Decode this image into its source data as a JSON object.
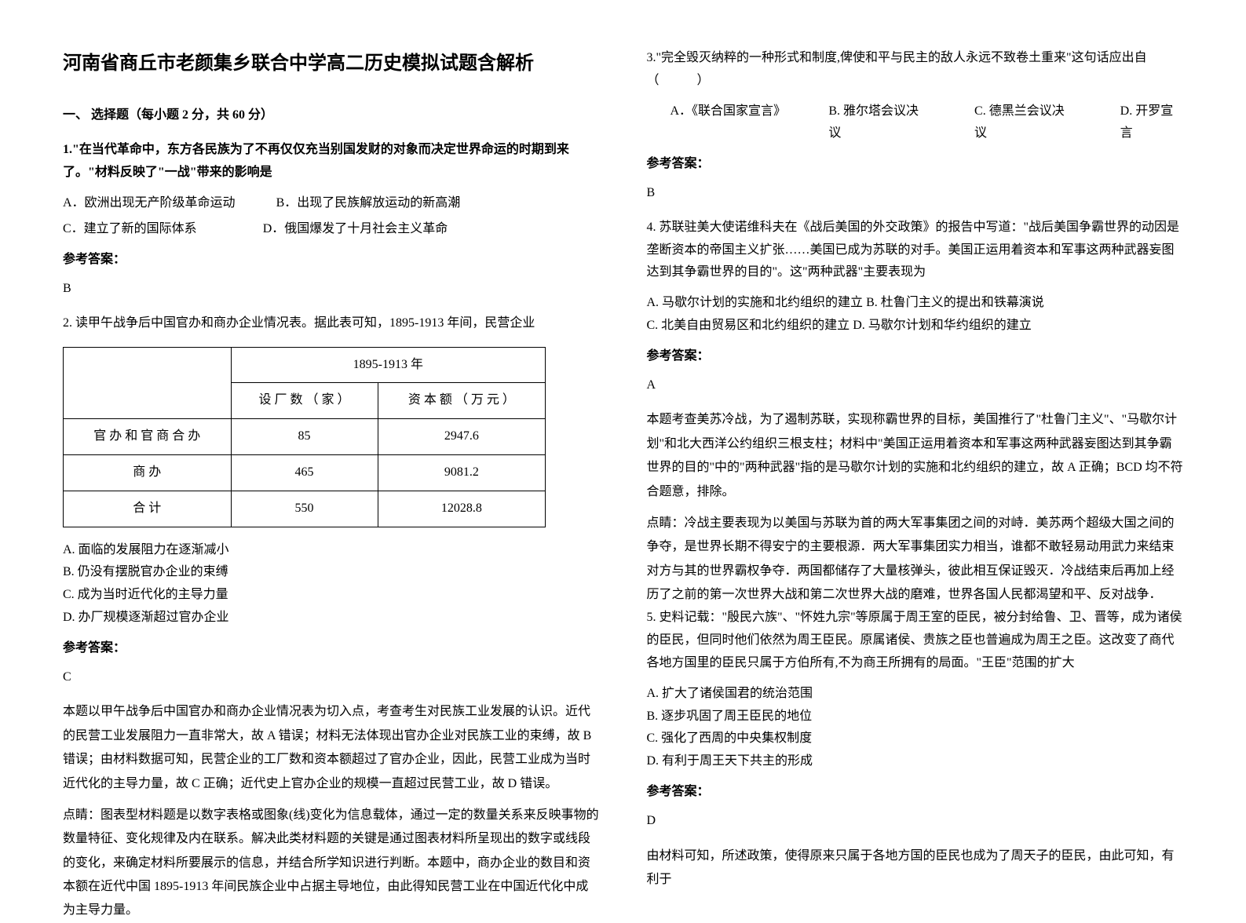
{
  "title": "河南省商丘市老颜集乡联合中学高二历史模拟试题含解析",
  "section_header": "一、 选择题（每小题 2 分，共 60 分）",
  "q1": {
    "stem": "1.\"在当代革命中，东方各民族为了不再仅仅充当别国发财的对象而决定世界命运的时期到来了。\"材料反映了\"一战\"带来的影响是",
    "optA": "A．欧洲出现无产阶级革命运动",
    "optB": "B．出现了民族解放运动的新高潮",
    "optC": "C．建立了新的国际体系",
    "optD": "D．俄国爆发了十月社会主义革命",
    "answer_label": "参考答案：",
    "answer": "B"
  },
  "q2": {
    "stem": "2. 读甲午战争后中国官办和商办企业情况表。据此表可知，1895-1913 年间，民营企业",
    "table": {
      "header_span": "1895-1913 年",
      "col1": "设 厂 数 （ 家 ）",
      "col2": "资 本 额 （ 万 元 ）",
      "rows": [
        {
          "label": "官 办 和 官 商 合 办",
          "c1": "85",
          "c2": "2947.6"
        },
        {
          "label": "商 办",
          "c1": "465",
          "c2": "9081.2"
        },
        {
          "label": "合 计",
          "c1": "550",
          "c2": "12028.8"
        }
      ]
    },
    "optA": "A. 面临的发展阻力在逐渐减小",
    "optB": "B. 仍没有摆脱官办企业的束缚",
    "optC": "C. 成为当时近代化的主导力量",
    "optD": "D. 办厂规模逐渐超过官办企业",
    "answer_label": "参考答案：",
    "answer": "C",
    "explanation1": "本题以甲午战争后中国官办和商办企业情况表为切入点，考查考生对民族工业发展的认识。近代的民营工业发展阻力一直非常大，故 A 错误；材料无法体现出官办企业对民族工业的束缚，故 B 错误；由材料数据可知，民营企业的工厂数和资本额超过了官办企业，因此，民营工业成为当时近代化的主导力量，故 C 正确；近代史上官办企业的规模一直超过民营工业，故 D 错误。",
    "explanation2": "点睛：图表型材料题是以数字表格或图象(线)变化为信息载体，通过一定的数量关系来反映事物的数量特征、变化规律及内在联系。解决此类材料题的关键是通过图表材料所呈现出的数字或线段的变化，来确定材料所要展示的信息，并结合所学知识进行判断。本题中，商办企业的数目和资本额在近代中国 1895-1913 年间民族企业中占据主导地位，由此得知民营工业在中国近代化中成为主导力量。"
  },
  "q3": {
    "stem": "3.\"完全毁灭纳粹的一种形式和制度,俾使和平与民主的敌人永远不致卷土重来\"这句话应出自（　　　）",
    "optA": "A．《联合国家宣言》",
    "optB": "B. 雅尔塔会议决议",
    "optC": "C. 德黑兰会议决议",
    "optD": "D. 开罗宣言",
    "answer_label": "参考答案：",
    "answer": "B"
  },
  "q4": {
    "stem": "4. 苏联驻美大使诺维科夫在《战后美国的外交政策》的报告中写道：\"战后美国争霸世界的动因是垄断资本的帝国主义扩张……美国已成为苏联的对手。美国正运用着资本和军事这两种武器妄图达到其争霸世界的目的\"。这\"两种武器\"主要表现为",
    "optA": "A. 马歇尔计划的实施和北约组织的建立",
    "optB": "B. 杜鲁门主义的提出和铁幕演说",
    "optC": "C. 北美自由贸易区和北约组织的建立",
    "optD": "D. 马歇尔计划和华约组织的建立",
    "answer_label": "参考答案：",
    "answer": "A",
    "explanation1": "本题考查美苏冷战，为了遏制苏联，实现称霸世界的目标，美国推行了\"杜鲁门主义\"、\"马歇尔计划\"和北大西洋公约组织三根支柱；材料中\"美国正运用着资本和军事这两种武器妄图达到其争霸世界的目的\"中的\"两种武器\"指的是马歇尔计划的实施和北约组织的建立，故 A 正确；BCD 均不符合题意，排除。",
    "explanation2": "点睛：冷战主要表现为以美国与苏联为首的两大军事集团之间的对峙．美苏两个超级大国之间的争夺，是世界长期不得安宁的主要根源．两大军事集团实力相当，谁都不敢轻易动用武力来结束对方与其的世界霸权争夺．两国都储存了大量核弹头，彼此相互保证毁灭．冷战结束后再加上经历了之前的第一次世界大战和第二次世界大战的磨难，世界各国人民都渴望和平、反对战争．"
  },
  "q5": {
    "stem": "5. 史料记载：\"殷民六族\"、\"怀姓九宗\"等原属于周王室的臣民，被分封给鲁、卫、晋等，成为诸侯的臣民，但同时他们依然为周王臣民。原属诸侯、贵族之臣也普遍成为周王之臣。这改变了商代各地方国里的臣民只属于方伯所有,不为商王所拥有的局面。\"王臣\"范围的扩大",
    "optA": "A. 扩大了诸侯国君的统治范围",
    "optB": "B. 逐步巩固了周王臣民的地位",
    "optC": "C. 强化了西周的中央集权制度",
    "optD": "D. 有利于周王天下共主的形成",
    "answer_label": "参考答案：",
    "answer": "D",
    "explanation": "由材料可知，所述政策，使得原来只属于各地方国的臣民也成为了周天子的臣民，由此可知，有利于"
  }
}
